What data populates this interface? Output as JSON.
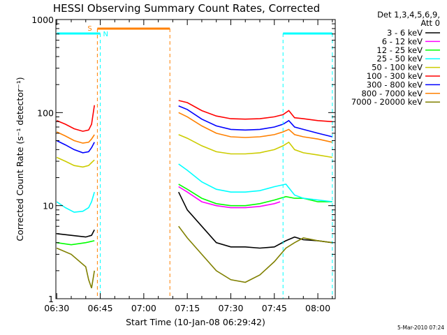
{
  "colors": {
    "background": "#ffffff",
    "axes": "#000000",
    "saa": "#ff8000",
    "night": "#00ffff"
  },
  "annotations": {
    "saa_label": "S",
    "night_label": "N",
    "footer": "5-Mar-2010 07:24"
  },
  "legend": {
    "header_line1": "Det 1,3,4,5,6,9,",
    "header_line2": "Att 0",
    "items": [
      {
        "label": "3 - 6 keV",
        "color": "#000000"
      },
      {
        "label": "6 - 12 keV",
        "color": "#ff00ff"
      },
      {
        "label": "12 - 25 keV",
        "color": "#00ff00"
      },
      {
        "label": "25 - 50 keV",
        "color": "#00ffff"
      },
      {
        "label": "50 - 100 keV",
        "color": "#cccc00"
      },
      {
        "label": "100 - 300 keV",
        "color": "#ff0000"
      },
      {
        "label": "300 - 800 keV",
        "color": "#0000ff"
      },
      {
        "label": "800 - 7000 keV",
        "color": "#ff8000"
      },
      {
        "label": "7000 - 20000 keV",
        "color": "#808000"
      }
    ]
  },
  "chart_data": {
    "type": "line",
    "title": "HESSI Observing Summary Count Rates, Corrected",
    "xlabel": "Start Time (10-Jan-08 06:29:42)",
    "ylabel": "Corrected Count Rate (s⁻¹ detector⁻¹)",
    "y_scale": "log",
    "ylim": [
      1,
      1000
    ],
    "xlim": [
      "06:29:42",
      "08:06:00"
    ],
    "x_ticks": [
      "06:30",
      "06:45",
      "07:00",
      "07:15",
      "07:30",
      "07:45",
      "08:00"
    ],
    "y_ticks": [
      "1",
      "10",
      "100",
      "1000"
    ],
    "grid": false,
    "legend_position": "right",
    "series": [
      {
        "name": "3 - 6 keV",
        "color": "#000000",
        "points": [
          [
            "06:30",
            5
          ],
          [
            "06:35",
            4.8
          ],
          [
            "06:40",
            4.6
          ],
          [
            "06:42",
            4.8
          ],
          [
            "06:43",
            5.5
          ],
          [
            "07:12",
            14
          ],
          [
            "07:15",
            9
          ],
          [
            "07:20",
            6
          ],
          [
            "07:25",
            4
          ],
          [
            "07:30",
            3.6
          ],
          [
            "07:35",
            3.6
          ],
          [
            "07:40",
            3.5
          ],
          [
            "07:45",
            3.6
          ],
          [
            "07:49",
            4.2
          ],
          [
            "07:52",
            4.6
          ],
          [
            "07:55",
            4.3
          ],
          [
            "08:00",
            4.2
          ],
          [
            "08:05",
            4.0
          ]
        ]
      },
      {
        "name": "6 - 12 keV",
        "color": "#ff00ff",
        "points": [
          [
            "07:12",
            16
          ],
          [
            "07:15",
            14
          ],
          [
            "07:20",
            11
          ],
          [
            "07:25",
            10
          ],
          [
            "07:30",
            9.5
          ],
          [
            "07:35",
            9.5
          ],
          [
            "07:40",
            9.8
          ],
          [
            "07:45",
            10.5
          ],
          [
            "07:47",
            11
          ]
        ]
      },
      {
        "name": "12 - 25 keV",
        "color": "#00ff00",
        "points": [
          [
            "06:30",
            4
          ],
          [
            "06:35",
            3.8
          ],
          [
            "06:40",
            4
          ],
          [
            "06:43",
            4.2
          ],
          [
            "07:12",
            17
          ],
          [
            "07:15",
            15
          ],
          [
            "07:20",
            12
          ],
          [
            "07:25",
            10.5
          ],
          [
            "07:30",
            10
          ],
          [
            "07:35",
            10
          ],
          [
            "07:40",
            10.5
          ],
          [
            "07:45",
            11.5
          ],
          [
            "07:49",
            12.5
          ],
          [
            "07:52",
            12
          ],
          [
            "07:55",
            12
          ],
          [
            "08:00",
            11
          ],
          [
            "08:05",
            11
          ]
        ]
      },
      {
        "name": "25 - 50 keV",
        "color": "#00ffff",
        "points": [
          [
            "06:30",
            11
          ],
          [
            "06:33",
            9.5
          ],
          [
            "06:36",
            8.5
          ],
          [
            "06:39",
            8.7
          ],
          [
            "06:41",
            9.5
          ],
          [
            "06:42",
            11
          ],
          [
            "06:43",
            14
          ],
          [
            "07:12",
            28
          ],
          [
            "07:15",
            24
          ],
          [
            "07:20",
            18
          ],
          [
            "07:25",
            15
          ],
          [
            "07:30",
            14
          ],
          [
            "07:35",
            14
          ],
          [
            "07:40",
            14.5
          ],
          [
            "07:45",
            16
          ],
          [
            "07:49",
            17
          ],
          [
            "07:52",
            13
          ],
          [
            "07:55",
            12
          ],
          [
            "08:00",
            11.5
          ],
          [
            "08:05",
            11
          ]
        ]
      },
      {
        "name": "50 - 100 keV",
        "color": "#cccc00",
        "points": [
          [
            "06:30",
            33
          ],
          [
            "06:33",
            30
          ],
          [
            "06:36",
            27
          ],
          [
            "06:39",
            26
          ],
          [
            "06:41",
            27
          ],
          [
            "06:42",
            29
          ],
          [
            "06:43",
            31
          ],
          [
            "07:12",
            58
          ],
          [
            "07:15",
            53
          ],
          [
            "07:20",
            44
          ],
          [
            "07:25",
            38
          ],
          [
            "07:30",
            36
          ],
          [
            "07:35",
            36
          ],
          [
            "07:40",
            37
          ],
          [
            "07:45",
            40
          ],
          [
            "07:48",
            44
          ],
          [
            "07:50",
            48
          ],
          [
            "07:52",
            40
          ],
          [
            "07:55",
            37
          ],
          [
            "08:00",
            35
          ],
          [
            "08:05",
            33
          ]
        ]
      },
      {
        "name": "100 - 300 keV",
        "color": "#ff0000",
        "points": [
          [
            "06:30",
            82
          ],
          [
            "06:33",
            75
          ],
          [
            "06:36",
            67
          ],
          [
            "06:39",
            63
          ],
          [
            "06:41",
            65
          ],
          [
            "06:42",
            75
          ],
          [
            "06:43",
            120
          ],
          [
            "07:12",
            135
          ],
          [
            "07:15",
            128
          ],
          [
            "07:20",
            105
          ],
          [
            "07:25",
            92
          ],
          [
            "07:30",
            86
          ],
          [
            "07:35",
            85
          ],
          [
            "07:40",
            86
          ],
          [
            "07:45",
            90
          ],
          [
            "07:48",
            95
          ],
          [
            "07:50",
            105
          ],
          [
            "07:52",
            88
          ],
          [
            "07:55",
            86
          ],
          [
            "08:00",
            82
          ],
          [
            "08:05",
            80
          ]
        ]
      },
      {
        "name": "300 - 800 keV",
        "color": "#0000ff",
        "points": [
          [
            "06:30",
            50
          ],
          [
            "06:33",
            45
          ],
          [
            "06:36",
            40
          ],
          [
            "06:39",
            37
          ],
          [
            "06:41",
            38
          ],
          [
            "06:42",
            42
          ],
          [
            "06:43",
            48
          ],
          [
            "07:12",
            118
          ],
          [
            "07:15",
            108
          ],
          [
            "07:20",
            85
          ],
          [
            "07:25",
            72
          ],
          [
            "07:30",
            66
          ],
          [
            "07:35",
            65
          ],
          [
            "07:40",
            66
          ],
          [
            "07:45",
            70
          ],
          [
            "07:48",
            75
          ],
          [
            "07:50",
            82
          ],
          [
            "07:52",
            70
          ],
          [
            "07:55",
            66
          ],
          [
            "08:00",
            60
          ],
          [
            "08:05",
            55
          ]
        ]
      },
      {
        "name": "800 - 7000 keV",
        "color": "#ff8000",
        "points": [
          [
            "06:30",
            62
          ],
          [
            "06:33",
            56
          ],
          [
            "06:36",
            50
          ],
          [
            "06:39",
            47
          ],
          [
            "06:41",
            48
          ],
          [
            "06:42",
            52
          ],
          [
            "06:43",
            58
          ],
          [
            "07:12",
            100
          ],
          [
            "07:15",
            90
          ],
          [
            "07:20",
            72
          ],
          [
            "07:25",
            60
          ],
          [
            "07:30",
            55
          ],
          [
            "07:35",
            54
          ],
          [
            "07:40",
            55
          ],
          [
            "07:45",
            58
          ],
          [
            "07:48",
            62
          ],
          [
            "07:50",
            66
          ],
          [
            "07:52",
            58
          ],
          [
            "07:55",
            55
          ],
          [
            "08:00",
            52
          ],
          [
            "08:05",
            48
          ]
        ]
      },
      {
        "name": "7000 - 20000 keV",
        "color": "#808000",
        "points": [
          [
            "06:30",
            3.5
          ],
          [
            "06:35",
            3.0
          ],
          [
            "06:40",
            2.2
          ],
          [
            "06:41",
            1.6
          ],
          [
            "06:42",
            1.3
          ],
          [
            "06:43",
            2.0
          ],
          [
            "07:12",
            6
          ],
          [
            "07:15",
            4.5
          ],
          [
            "07:20",
            3
          ],
          [
            "07:25",
            2
          ],
          [
            "07:30",
            1.6
          ],
          [
            "07:35",
            1.5
          ],
          [
            "07:40",
            1.8
          ],
          [
            "07:45",
            2.5
          ],
          [
            "07:49",
            3.5
          ],
          [
            "07:52",
            4
          ],
          [
            "07:55",
            4.5
          ],
          [
            "08:00",
            4.2
          ],
          [
            "08:05",
            4
          ]
        ]
      }
    ],
    "bar_annotations": [
      {
        "name": "S",
        "start": "06:44",
        "end": "07:09",
        "color": "#ff8000"
      },
      {
        "name": "N",
        "start": "06:30",
        "end": "06:45",
        "color": "#00ffff"
      },
      {
        "name": "N",
        "start": "07:48",
        "end": "08:05",
        "color": "#00ffff"
      }
    ]
  }
}
